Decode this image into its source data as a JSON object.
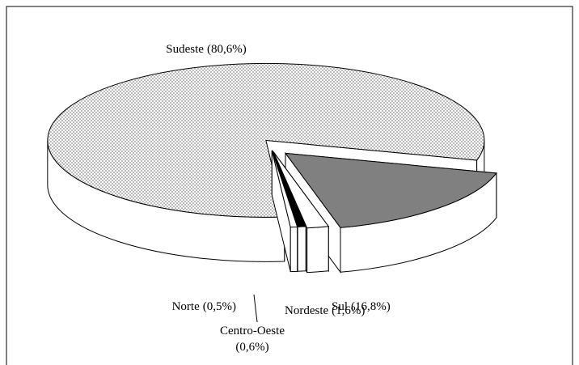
{
  "chart_data": {
    "type": "pie3d",
    "categories": [
      "Sul",
      "Nordeste",
      "Centro-Oeste",
      "Norte",
      "Sudeste"
    ],
    "values": [
      16.8,
      1.6,
      0.6,
      0.5,
      80.6
    ],
    "value_labels": [
      "(16,8%)",
      "(1,6%)",
      "(0,6%)",
      "(0,5%)",
      "(80,6%)"
    ],
    "colors": [
      "#808080",
      "#ffffff",
      "#000000",
      "#ffffff",
      "#bdbdbd"
    ]
  }
}
